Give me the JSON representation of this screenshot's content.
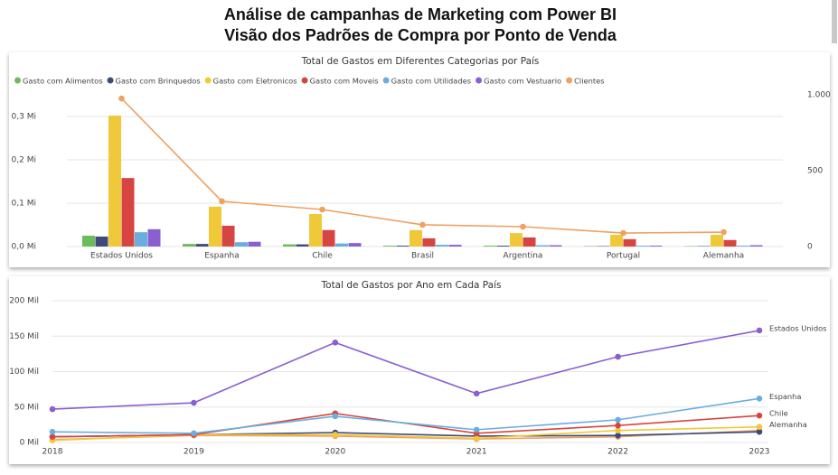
{
  "header": {
    "title": "Análise de campanhas de Marketing com Power BI",
    "subtitle": "Visão dos Padrões de Compra por Ponto de Venda"
  },
  "chart_data": [
    {
      "type": "bar",
      "title": "Total de Gastos em Diferentes Categorias por País",
      "categories": [
        "Estados Unidos",
        "Espanha",
        "Chile",
        "Brasil",
        "Argentina",
        "Portugal",
        "Alemanha"
      ],
      "series": [
        {
          "name": "Gasto com Alimentos",
          "color": "#6bbd5b",
          "values": [
            25000,
            6000,
            5000,
            2000,
            2000,
            1000,
            1000
          ]
        },
        {
          "name": "Gasto com Brinquedos",
          "color": "#3e4b7a",
          "values": [
            23000,
            6000,
            5000,
            2000,
            2000,
            1000,
            1000
          ]
        },
        {
          "name": "Gasto com Eletronicos",
          "color": "#f0c93a",
          "values": [
            302000,
            92000,
            75000,
            38000,
            31000,
            27000,
            27000
          ]
        },
        {
          "name": "Gasto com Moveis",
          "color": "#d64541",
          "values": [
            158000,
            48000,
            38000,
            19000,
            21000,
            17000,
            15000
          ]
        },
        {
          "name": "Gasto com Utilidades",
          "color": "#6aaee0",
          "values": [
            33000,
            10000,
            7000,
            4000,
            3000,
            2000,
            2000
          ]
        },
        {
          "name": "Gasto com Vestuario",
          "color": "#8a5fd0",
          "values": [
            40000,
            11000,
            8000,
            4000,
            3000,
            2000,
            3000
          ]
        },
        {
          "name": "Clientes",
          "color": "#f0a060",
          "axis": "y2",
          "values": [
            976,
            298,
            244,
            143,
            131,
            89,
            95
          ]
        }
      ],
      "ylim": [
        0,
        350000
      ],
      "yticks": [
        {
          "value": 0,
          "label": "0,0 Mi"
        },
        {
          "value": 100000,
          "label": "0,1 Mi"
        },
        {
          "value": 200000,
          "label": "0,2 Mi"
        },
        {
          "value": 300000,
          "label": "0,3 Mi"
        }
      ],
      "y2lim": [
        0,
        1000
      ],
      "y2ticks": [
        0,
        500,
        {
          "value": 1000,
          "label": "1.000"
        }
      ],
      "grid": true,
      "legend": "top"
    },
    {
      "type": "line",
      "title": "Total de Gastos por Ano em Cada País",
      "categories": [
        "2018",
        "2019",
        "2020",
        "2021",
        "2022",
        "2023"
      ],
      "series": [
        {
          "name": "Estados Unidos",
          "color": "#8a5fd0",
          "values": [
            47000,
            56000,
            141000,
            69000,
            121000,
            158000
          ]
        },
        {
          "name": "Espanha",
          "color": "#6aaee0",
          "values": [
            15000,
            13000,
            37000,
            18000,
            32000,
            62000
          ]
        },
        {
          "name": "Chile",
          "color": "#d64541",
          "values": [
            8000,
            11000,
            41000,
            13000,
            24000,
            38000
          ]
        },
        {
          "name": "Alemanha",
          "color": "#f0c93a",
          "values": [
            3000,
            11000,
            11000,
            6000,
            17000,
            22000
          ]
        },
        {
          "name": null,
          "color": "#3e4b7a",
          "values": [
            8000,
            11000,
            14000,
            9000,
            10000,
            15000
          ]
        },
        {
          "name": null,
          "color": "#f0a060",
          "values": [
            4000,
            10000,
            9000,
            5000,
            8000,
            17000
          ]
        }
      ],
      "ylim": [
        0,
        200000
      ],
      "yticks": [
        {
          "value": 0,
          "label": "0 Mil"
        },
        {
          "value": 50000,
          "label": "50 Mil"
        },
        {
          "value": 100000,
          "label": "100 Mil"
        },
        {
          "value": 150000,
          "label": "150 Mil"
        },
        {
          "value": 200000,
          "label": "200 Mil"
        }
      ],
      "grid": true,
      "legend": "end-labels"
    }
  ]
}
